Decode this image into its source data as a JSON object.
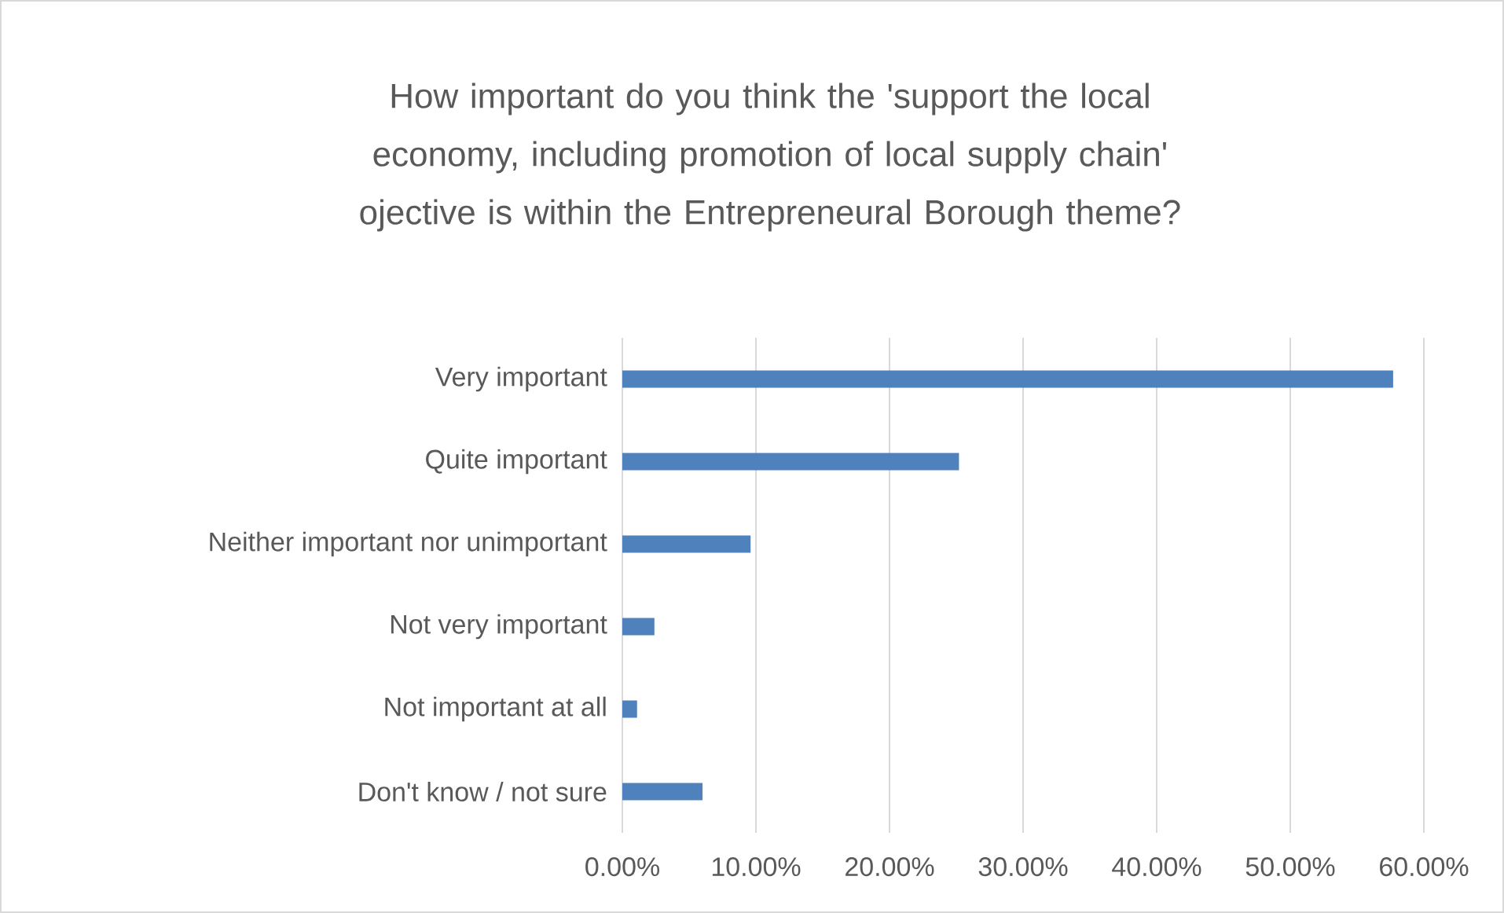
{
  "chart_data": {
    "type": "bar",
    "orientation": "horizontal",
    "title": "How important do you think the 'support the local economy, including promotion of local supply chain' ojective is within the Entrepreneural Borough theme?",
    "categories": [
      "Very important",
      "Quite important",
      "Neither important nor unimportant",
      "Not very important",
      "Not important at all",
      "Don't know / not sure"
    ],
    "values": [
      57.7,
      25.2,
      9.6,
      2.4,
      1.1,
      6.0
    ],
    "color": "#4f81bd",
    "xlim": [
      0,
      60
    ],
    "xticks": [
      {
        "value": 0,
        "label": "0.00%"
      },
      {
        "value": 10,
        "label": "10.00%"
      },
      {
        "value": 20,
        "label": "20.00%"
      },
      {
        "value": 30,
        "label": "30.00%"
      },
      {
        "value": 40,
        "label": "40.00%"
      },
      {
        "value": 50,
        "label": "50.00%"
      },
      {
        "value": 60,
        "label": "60.00%"
      }
    ],
    "grid": "x"
  }
}
